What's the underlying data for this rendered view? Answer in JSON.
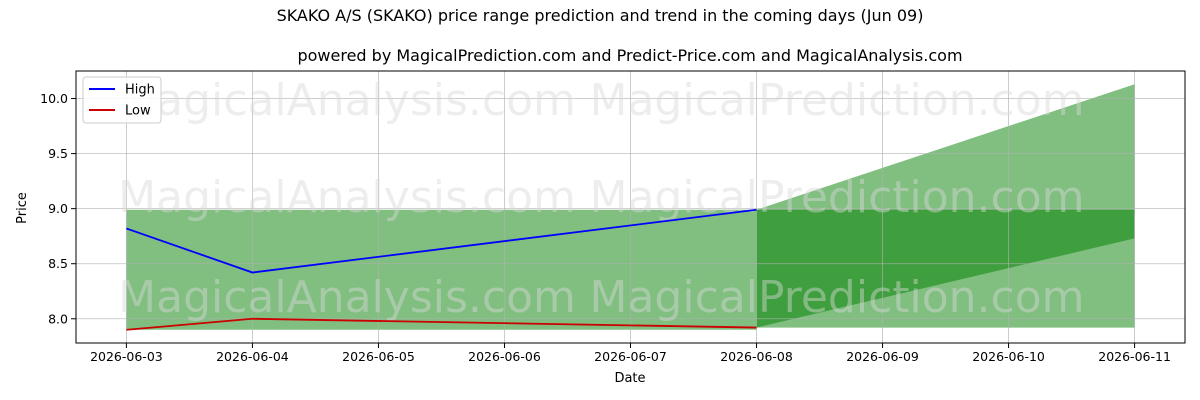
{
  "chart_data": {
    "type": "area",
    "title": "SKAKO A/S (SKAKO) price range prediction and trend in the coming days (Jun 09)",
    "subtitle": "powered by MagicalPrediction.com and Predict-Price.com and MagicalAnalysis.com",
    "xlabel": "Date",
    "ylabel": "Price",
    "x_ticks": [
      "2026-06-03",
      "2026-06-04",
      "2026-06-05",
      "2026-06-06",
      "2026-06-07",
      "2026-06-08",
      "2026-06-09",
      "2026-06-10",
      "2026-06-11"
    ],
    "y_ticks": [
      "8.0",
      "8.5",
      "9.0",
      "9.5",
      "10.0"
    ],
    "ylim": [
      7.78,
      10.25
    ],
    "grid": true,
    "legend_position": "top-left",
    "series": [
      {
        "name": "High",
        "color": "#0000ff",
        "x": [
          "2026-06-03",
          "2026-06-04",
          "2026-06-08"
        ],
        "values": [
          8.82,
          8.42,
          8.99
        ]
      },
      {
        "name": "Low",
        "color": "#cc0000",
        "x": [
          "2026-06-03",
          "2026-06-04",
          "2026-06-08"
        ],
        "values": [
          7.9,
          8.0,
          7.92
        ]
      }
    ],
    "bands": [
      {
        "label": "historical range",
        "color": "#80bf80",
        "x": [
          "2026-06-03",
          "2026-06-08"
        ],
        "upper": [
          8.99,
          8.99
        ],
        "lower": [
          7.9,
          7.9
        ]
      },
      {
        "label": "prediction range outer",
        "color": "#80bf80",
        "x": [
          "2026-06-08",
          "2026-06-11"
        ],
        "upper": [
          8.99,
          10.13
        ],
        "lower": [
          7.92,
          7.92
        ]
      },
      {
        "label": "prediction range inner",
        "color": "#3f9f3f",
        "x": [
          "2026-06-08",
          "2026-06-11"
        ],
        "upper": [
          8.99,
          8.99
        ],
        "lower": [
          7.92,
          8.73
        ]
      }
    ],
    "watermarks": [
      "MagicalAnalysis.com",
      "MagicalPrediction.com"
    ]
  }
}
